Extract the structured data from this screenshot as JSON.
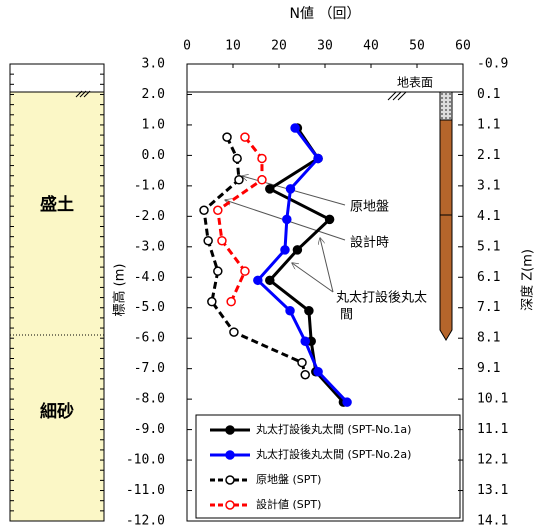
{
  "chart_data": {
    "type": "line",
    "title": "N値 （回）",
    "ylabel": "標高 (m)",
    "y2label": "深度 Z(m)",
    "ground_label": "地表面",
    "layers": [
      "盛土",
      "細砂"
    ],
    "annotations": [
      "原地盤",
      "設計時",
      [
        "丸太打設後丸太",
        "間"
      ]
    ],
    "xlim": [
      0,
      60
    ],
    "xticks": [
      0,
      10,
      20,
      30,
      40,
      50,
      60
    ],
    "ylim": [
      -12,
      3
    ],
    "yticks": [
      {
        "value": 3,
        "label": "3.0"
      },
      {
        "value": 2,
        "label": "2.0"
      },
      {
        "value": 1,
        "label": "1.0"
      },
      {
        "value": 0,
        "label": "0.0"
      },
      {
        "value": -1,
        "label": "-1.0"
      },
      {
        "value": -2,
        "label": "-2.0"
      },
      {
        "value": -3,
        "label": "-3.0"
      },
      {
        "value": -4,
        "label": "-4.0"
      },
      {
        "value": -5,
        "label": "-5.0"
      },
      {
        "value": -6,
        "label": "-6.0"
      },
      {
        "value": -7,
        "label": "-7.0"
      },
      {
        "value": -8,
        "label": "-8.0"
      },
      {
        "value": -9,
        "label": "-9.0"
      },
      {
        "value": -10,
        "label": "-10.0"
      },
      {
        "value": -11,
        "label": "-11.0"
      },
      {
        "value": -12,
        "label": "-12.0"
      }
    ],
    "y2lim": [
      14.1,
      -0.9
    ],
    "y2ticks": [
      -0.9,
      0.1,
      1.1,
      2.1,
      3.1,
      4.1,
      5.1,
      6.1,
      7.1,
      8.1,
      9.1,
      10.1,
      11.1,
      12.1,
      13.1,
      14.1
    ],
    "series": [
      {
        "name": "丸太打設後丸太間 (SPT-No.1a)",
        "color": "#000000",
        "dashed": false,
        "filled": true,
        "x": [
          24,
          28.5,
          18,
          31,
          24,
          18,
          26.5,
          27,
          28,
          34
        ],
        "y": [
          0.9,
          -0.1,
          -1.1,
          -2.1,
          -3.1,
          -4.1,
          -5.1,
          -6.1,
          -7.1,
          -8.1
        ]
      },
      {
        "name": "丸太打設後丸太間 (SPT-No.2a)",
        "color": "#0000ff",
        "dashed": false,
        "filled": true,
        "x": [
          23.5,
          28.5,
          22.5,
          21.7,
          21.3,
          15.4,
          22.4,
          25.7,
          28.5,
          34.8
        ],
        "y": [
          0.9,
          -0.1,
          -1.1,
          -2.1,
          -3.1,
          -4.1,
          -5.1,
          -6.1,
          -7.1,
          -8.1
        ]
      },
      {
        "name": "原地盤 (SPT)",
        "color": "#000000",
        "dashed": true,
        "filled": false,
        "x": [
          8.7,
          10.9,
          11.3,
          3.7,
          4.6,
          6.7,
          5.4,
          10.2,
          25,
          25.7
        ],
        "y": [
          0.6,
          -0.1,
          -0.8,
          -1.8,
          -2.8,
          -3.8,
          -4.8,
          -5.8,
          -6.8,
          -7.2
        ]
      },
      {
        "name": "設計値 (SPT)",
        "color": "#ff0000",
        "dashed": true,
        "filled": false,
        "x": [
          12.6,
          16.3,
          16.3,
          6.7,
          7.6,
          12.6,
          9.6
        ],
        "y": [
          0.6,
          -0.1,
          -0.8,
          -1.8,
          -2.8,
          -3.8,
          -4.8
        ]
      }
    ]
  }
}
